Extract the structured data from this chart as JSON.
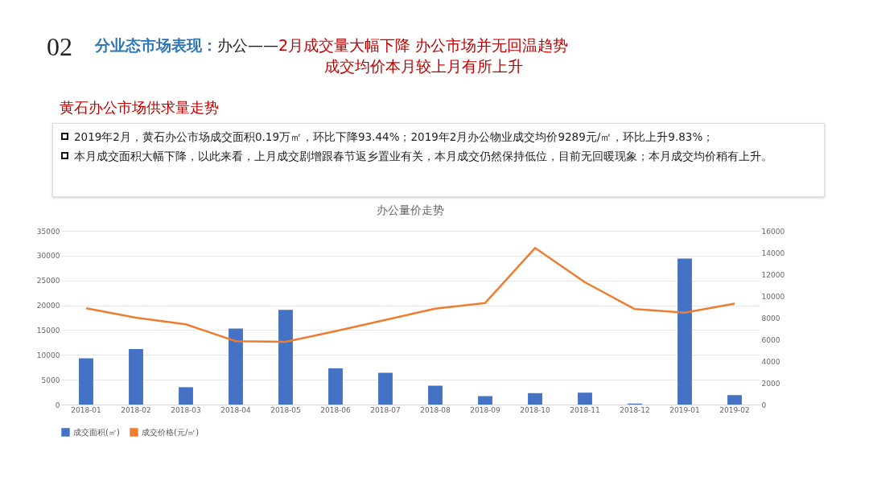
{
  "chart_data": {
    "type": "bar",
    "title": "办公量价走势",
    "subtitle": "黄石办公市场供求量走势",
    "annotations": [
      "02",
      "分业态市场表现：",
      "办公——",
      "2月成交量大幅下降 办公市场并无回温趋势",
      "成交均价本月较上月有所上升",
      "2019年2月，黄石办公市场成交面积0.19万㎡，环比下降93.44%；2019年2月办公物业成交均价9289元/㎡，环比上升9.83%；",
      "本月成交面积大幅下降，以此来看，上月成交剧增跟春节返乡置业有关，本月成交仍然保持低位，目前无回暖现象；本月成交均价稍有上升。"
    ],
    "categories": [
      "2018-01",
      "2018-02",
      "2018-03",
      "2018-04",
      "2018-05",
      "2018-06",
      "2018-07",
      "2018-08",
      "2018-09",
      "2018-10",
      "2018-11",
      "2018-12",
      "2019-01",
      "2019-02"
    ],
    "series": [
      {
        "name": "成交面积(㎡)",
        "color": "#4472c4",
        "values": [
          9300,
          11200,
          3500,
          15300,
          19100,
          7300,
          6400,
          3800,
          1700,
          2300,
          2400,
          200,
          29400,
          1900
        ]
      },
      {
        "name": "成交价格(元/㎡)",
        "type": "line",
        "axis": "y2",
        "color": "#ed7d31",
        "values": [
          8870,
          8000,
          7390,
          5830,
          5780,
          6760,
          7800,
          8840,
          9360,
          14420,
          11260,
          8790,
          8460,
          9290
        ]
      }
    ],
    "ylim": [
      0,
      35000
    ],
    "yticks": [
      0,
      5000,
      10000,
      15000,
      20000,
      25000,
      30000,
      35000
    ],
    "y2lim": [
      0,
      16000
    ],
    "y2ticks": [
      0,
      2000,
      4000,
      6000,
      8000,
      10000,
      12000,
      14000,
      16000
    ],
    "grid": "y",
    "legend": "bottom",
    "marker": "none",
    "line_style": "solid"
  }
}
